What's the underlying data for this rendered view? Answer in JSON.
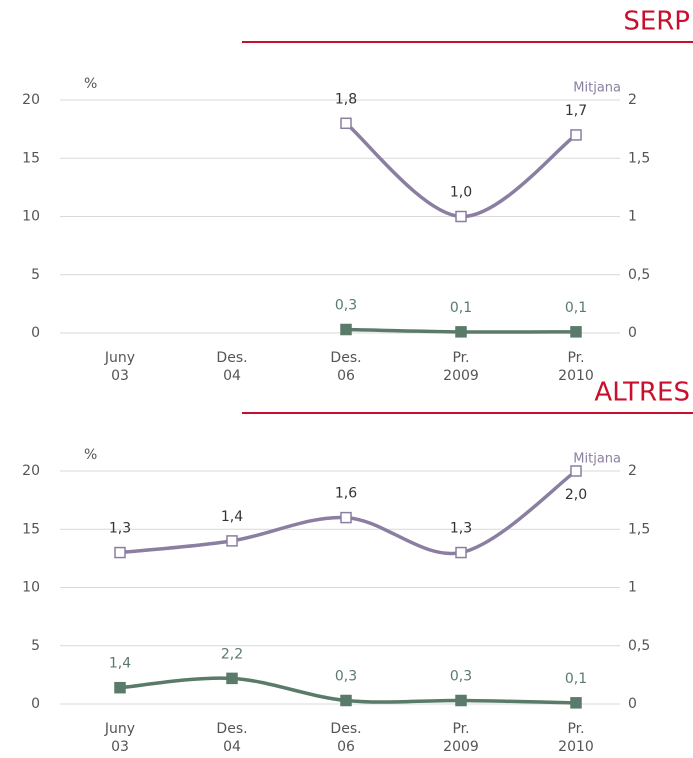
{
  "chart_data": [
    {
      "type": "line",
      "title": "SERP",
      "ylabel": "%",
      "y2label": "Mitjana",
      "categories": [
        [
          "Juny",
          "03"
        ],
        [
          "Des.",
          "04"
        ],
        [
          "Des.",
          "06"
        ],
        [
          "Pr.",
          "2009"
        ],
        [
          "Pr.",
          "2010"
        ]
      ],
      "ylim": [
        0,
        20
      ],
      "yticks": [
        0,
        5,
        10,
        15,
        20
      ],
      "y2lim": [
        0,
        2
      ],
      "y2ticks": [
        0,
        {
          "value": 0.5,
          "label": "0,5"
        },
        1,
        {
          "value": 1.5,
          "label": "1,5"
        },
        2
      ],
      "grid": true,
      "series": [
        {
          "color": "#8a7fa0",
          "axis": "y2",
          "marker": "hollow",
          "values": [
            null,
            null,
            1.8,
            1.0,
            1.7
          ],
          "value_labels": [
            null,
            null,
            "1,8",
            "1,0",
            "1,7"
          ]
        },
        {
          "color": "#5b7b6a",
          "axis": "y",
          "marker": "filled",
          "values": [
            null,
            null,
            0.3,
            0.1,
            0.1
          ],
          "value_labels": [
            null,
            null,
            "0,3",
            "0,1",
            "0,1"
          ]
        }
      ]
    },
    {
      "type": "line",
      "title": "ALTRES",
      "ylabel": "%",
      "y2label": "Mitjana",
      "categories": [
        [
          "Juny",
          "03"
        ],
        [
          "Des.",
          "04"
        ],
        [
          "Des.",
          "06"
        ],
        [
          "Pr.",
          "2009"
        ],
        [
          "Pr.",
          "2010"
        ]
      ],
      "ylim": [
        0,
        20
      ],
      "yticks": [
        0,
        5,
        10,
        15,
        20
      ],
      "y2lim": [
        0,
        2
      ],
      "y2ticks": [
        0,
        {
          "value": 0.5,
          "label": "0,5"
        },
        1,
        {
          "value": 1.5,
          "label": "1,5"
        },
        2
      ],
      "grid": true,
      "series": [
        {
          "color": "#8a7fa0",
          "axis": "y2",
          "marker": "hollow",
          "values": [
            1.3,
            1.4,
            1.6,
            1.3,
            2.0
          ],
          "value_labels": [
            "1,3",
            "1,4",
            "1,6",
            "1,3",
            "2,0"
          ]
        },
        {
          "color": "#5b7b6a",
          "axis": "y",
          "marker": "filled",
          "values": [
            1.4,
            2.2,
            0.3,
            0.3,
            0.1
          ],
          "value_labels": [
            "1,4",
            "2,2",
            "0,3",
            "0,3",
            "0,1"
          ]
        }
      ]
    }
  ]
}
